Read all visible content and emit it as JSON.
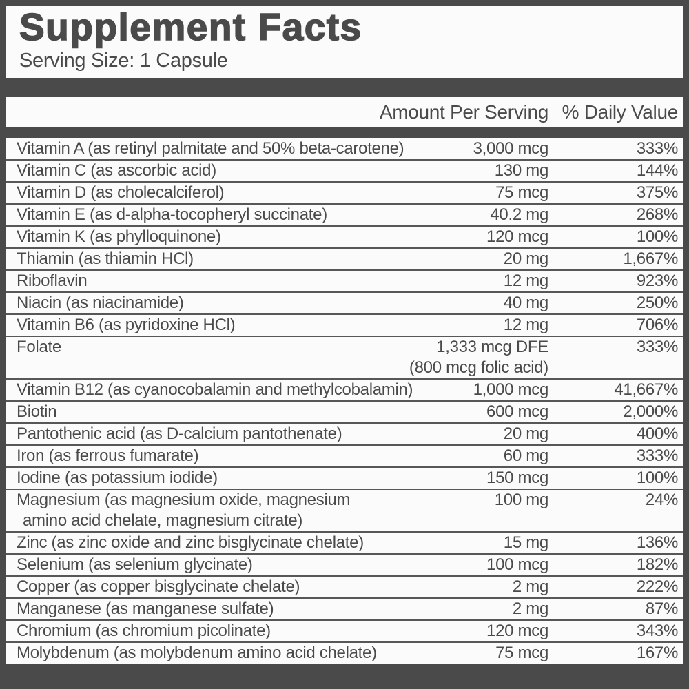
{
  "label": {
    "title": "Supplement Facts",
    "serving_size": "Serving Size: 1 Capsule",
    "columns": {
      "amount": "Amount Per Serving",
      "daily_value": "% Daily Value"
    },
    "colors": {
      "ink": "#4a4a4a",
      "separator": "#575757",
      "background": "#fbfbfb"
    },
    "rows": [
      {
        "name": "Vitamin A (as retinyl palmitate and 50% beta-carotene)",
        "amount": "3,000 mcg",
        "dv": "333%"
      },
      {
        "name": "Vitamin C (as ascorbic acid)",
        "amount": "130 mg",
        "dv": "144%"
      },
      {
        "name": "Vitamin D (as cholecalciferol)",
        "amount": "75 mcg",
        "dv": "375%"
      },
      {
        "name": "Vitamin E (as d-alpha-tocopheryl succinate)",
        "amount": "40.2 mg",
        "dv": "268%"
      },
      {
        "name": "Vitamin K (as phylloquinone)",
        "amount": "120 mcg",
        "dv": "100%"
      },
      {
        "name": "Thiamin (as thiamin HCl)",
        "amount": "20 mg",
        "dv": "1,667%"
      },
      {
        "name": "Riboflavin",
        "amount": "12 mg",
        "dv": "923%"
      },
      {
        "name": "Niacin (as niacinamide)",
        "amount": "40 mg",
        "dv": "250%"
      },
      {
        "name": "Vitamin B6 (as pyridoxine HCl)",
        "amount": "12 mg",
        "dv": "706%"
      },
      {
        "name": "Folate",
        "amount": "1,333 mcg DFE",
        "amount2": "(800 mcg folic acid)",
        "dv": "333%"
      },
      {
        "name": "Vitamin B12 (as cyanocobalamin and methylcobalamin)",
        "amount": "1,000 mcg",
        "dv": "41,667%"
      },
      {
        "name": "Biotin",
        "amount": "600 mcg",
        "dv": "2,000%"
      },
      {
        "name": "Pantothenic acid (as D-calcium pantothenate)",
        "amount": "20 mg",
        "dv": "400%"
      },
      {
        "name": "Iron (as ferrous fumarate)",
        "amount": "60 mg",
        "dv": "333%"
      },
      {
        "name": "Iodine (as potassium iodide)",
        "amount": "150 mcg",
        "dv": "100%"
      },
      {
        "name": "Magnesium (as magnesium oxide, magnesium",
        "name2": "amino acid chelate, magnesium citrate)",
        "amount": "100 mg",
        "dv": "24%"
      },
      {
        "name": "Zinc (as zinc oxide and zinc bisglycinate chelate)",
        "amount": "15 mg",
        "dv": "136%"
      },
      {
        "name": "Selenium (as selenium glycinate)",
        "amount": "100 mcg",
        "dv": "182%"
      },
      {
        "name": "Copper (as copper bisglycinate chelate)",
        "amount": "2 mg",
        "dv": "222%"
      },
      {
        "name": "Manganese (as manganese sulfate)",
        "amount": "2 mg",
        "dv": "87%"
      },
      {
        "name": "Chromium (as chromium picolinate)",
        "amount": "120 mcg",
        "dv": "343%"
      },
      {
        "name": "Molybdenum (as molybdenum amino acid chelate)",
        "amount": "75 mcg",
        "dv": "167%"
      }
    ]
  }
}
